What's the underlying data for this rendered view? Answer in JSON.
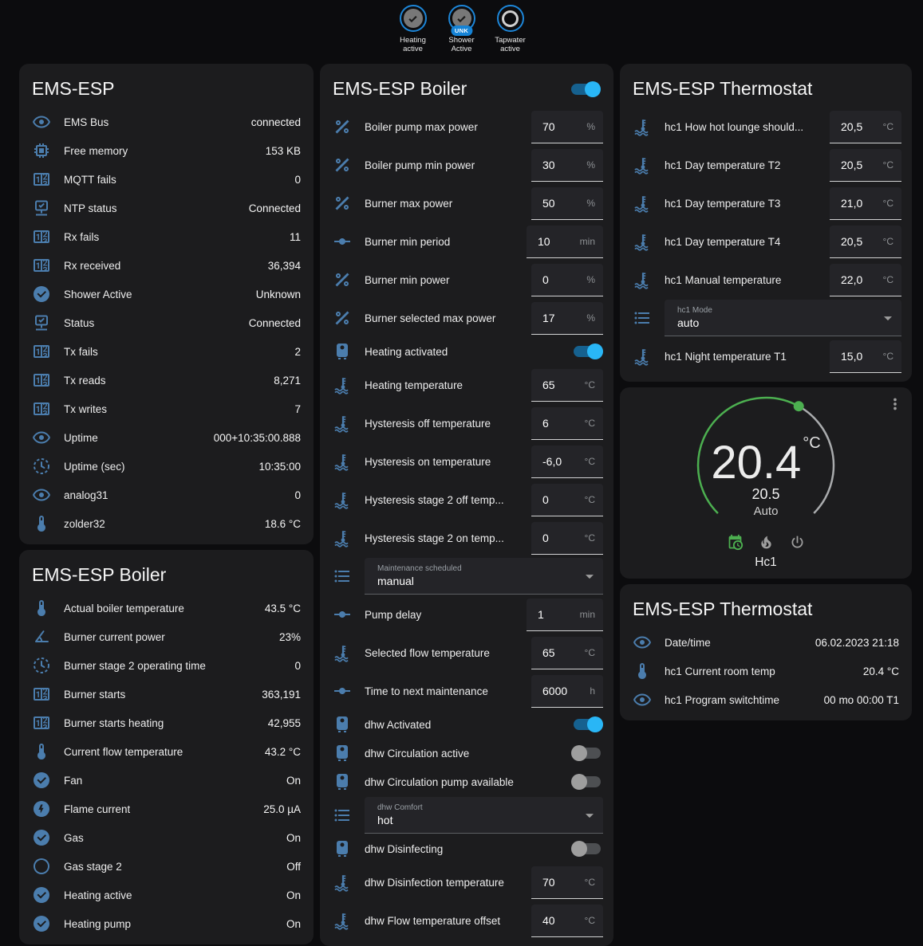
{
  "colors": {
    "accent": "#29b6f6",
    "icon_blue": "#4b7dad",
    "dial_green": "#4caf50",
    "badge_ring": "#1d86d8"
  },
  "top_badges": [
    {
      "icon": "check",
      "label": "Heating active",
      "state": "on",
      "sub": null
    },
    {
      "icon": "check",
      "label": "Shower Active",
      "state": "on",
      "sub": "UNK"
    },
    {
      "icon": "circle",
      "label": "Tapwater active",
      "state": "off",
      "sub": null
    }
  ],
  "left": {
    "card1": {
      "title": "EMS-ESP",
      "rows": [
        {
          "icon": "eye",
          "label": "EMS Bus",
          "value": "connected"
        },
        {
          "icon": "memory",
          "label": "Free memory",
          "value": "153 KB"
        },
        {
          "icon": "counter",
          "label": "MQTT fails",
          "value": "0"
        },
        {
          "icon": "network-check",
          "label": "NTP status",
          "value": "Connected"
        },
        {
          "icon": "counter",
          "label": "Rx fails",
          "value": "11"
        },
        {
          "icon": "counter",
          "label": "Rx received",
          "value": "36,394"
        },
        {
          "icon": "check-circle",
          "label": "Shower Active",
          "value": "Unknown"
        },
        {
          "icon": "network-check",
          "label": "Status",
          "value": "Connected"
        },
        {
          "icon": "counter",
          "label": "Tx fails",
          "value": "2"
        },
        {
          "icon": "counter",
          "label": "Tx reads",
          "value": "8,271"
        },
        {
          "icon": "counter",
          "label": "Tx writes",
          "value": "7"
        },
        {
          "icon": "eye",
          "label": "Uptime",
          "value": "000+10:35:00.888"
        },
        {
          "icon": "clock",
          "label": "Uptime (sec)",
          "value": "10:35:00"
        },
        {
          "icon": "eye",
          "label": "analog31",
          "value": "0"
        },
        {
          "icon": "thermometer",
          "label": "zolder32",
          "value": "18.6 °C"
        }
      ]
    },
    "card2": {
      "title": "EMS-ESP Boiler",
      "rows": [
        {
          "icon": "thermometer",
          "label": "Actual boiler temperature",
          "value": "43.5 °C"
        },
        {
          "icon": "angle",
          "label": "Burner current power",
          "value": "23%"
        },
        {
          "icon": "clock",
          "label": "Burner stage 2 operating time",
          "value": "0"
        },
        {
          "icon": "counter",
          "label": "Burner starts",
          "value": "363,191"
        },
        {
          "icon": "counter",
          "label": "Burner starts heating",
          "value": "42,955"
        },
        {
          "icon": "thermometer",
          "label": "Current flow temperature",
          "value": "43.2 °C"
        },
        {
          "icon": "check-circle",
          "label": "Fan",
          "value": "On"
        },
        {
          "icon": "flash-circle",
          "label": "Flame current",
          "value": "25.0 µA"
        },
        {
          "icon": "check-circle",
          "label": "Gas",
          "value": "On"
        },
        {
          "icon": "circle-outline",
          "label": "Gas stage 2",
          "value": "Off"
        },
        {
          "icon": "check-circle",
          "label": "Heating active",
          "value": "On"
        },
        {
          "icon": "check-circle",
          "label": "Heating pump",
          "value": "On"
        }
      ]
    }
  },
  "middle": {
    "title": "EMS-ESP Boiler",
    "header_toggle_on": true,
    "rows": [
      {
        "icon": "percent",
        "label": "Boiler pump max power",
        "control": "number",
        "value": "70",
        "unit": "%"
      },
      {
        "icon": "percent",
        "label": "Boiler pump min power",
        "control": "number",
        "value": "30",
        "unit": "%"
      },
      {
        "icon": "percent",
        "label": "Burner max power",
        "control": "number",
        "value": "50",
        "unit": "%"
      },
      {
        "icon": "ray",
        "label": "Burner min period",
        "control": "number",
        "value": "10",
        "unit": "min"
      },
      {
        "icon": "percent",
        "label": "Burner min power",
        "control": "number",
        "value": "0",
        "unit": "%"
      },
      {
        "icon": "percent",
        "label": "Burner selected max power",
        "control": "number",
        "value": "17",
        "unit": "%"
      },
      {
        "icon": "water-boiler",
        "label": "Heating activated",
        "control": "toggle",
        "on": true
      },
      {
        "icon": "thermo-water",
        "label": "Heating temperature",
        "control": "number",
        "value": "65",
        "unit": "°C"
      },
      {
        "icon": "thermo-water",
        "label": "Hysteresis off temperature",
        "control": "number",
        "value": "6",
        "unit": "°C"
      },
      {
        "icon": "thermo-water",
        "label": "Hysteresis on temperature",
        "control": "number",
        "value": "-6,0",
        "unit": "°C"
      },
      {
        "icon": "thermo-water",
        "label": "Hysteresis stage 2 off temp...",
        "control": "number",
        "value": "0",
        "unit": "°C"
      },
      {
        "icon": "thermo-water",
        "label": "Hysteresis stage 2 on temp...",
        "control": "number",
        "value": "0",
        "unit": "°C"
      },
      {
        "icon": "list",
        "label": "Maintenance scheduled",
        "control": "select",
        "value": "manual"
      },
      {
        "icon": "ray",
        "label": "Pump delay",
        "control": "number",
        "value": "1",
        "unit": "min"
      },
      {
        "icon": "thermo-water",
        "label": "Selected flow temperature",
        "control": "number",
        "value": "65",
        "unit": "°C"
      },
      {
        "icon": "ray",
        "label": "Time to next maintenance",
        "control": "number",
        "value": "6000",
        "unit": "h"
      },
      {
        "icon": "water-boiler",
        "label": "dhw Activated",
        "control": "toggle",
        "on": true
      },
      {
        "icon": "water-boiler",
        "label": "dhw Circulation active",
        "control": "toggle",
        "on": false
      },
      {
        "icon": "water-boiler",
        "label": "dhw Circulation pump available",
        "control": "toggle",
        "on": false
      },
      {
        "icon": "list",
        "label": "dhw Comfort",
        "control": "select",
        "value": "hot"
      },
      {
        "icon": "water-boiler",
        "label": "dhw Disinfecting",
        "control": "toggle",
        "on": false
      },
      {
        "icon": "thermo-water",
        "label": "dhw Disinfection temperature",
        "control": "number",
        "value": "70",
        "unit": "°C"
      },
      {
        "icon": "thermo-water",
        "label": "dhw Flow temperature offset",
        "control": "number",
        "value": "40",
        "unit": "°C"
      }
    ]
  },
  "right": {
    "card1": {
      "title": "EMS-ESP Thermostat",
      "rows": [
        {
          "icon": "thermo-water",
          "label": "hc1 How hot lounge should...",
          "control": "number",
          "value": "20,5",
          "unit": "°C"
        },
        {
          "icon": "thermo-water",
          "label": "hc1 Day temperature T2",
          "control": "number",
          "value": "20,5",
          "unit": "°C"
        },
        {
          "icon": "thermo-water",
          "label": "hc1 Day temperature T3",
          "control": "number",
          "value": "21,0",
          "unit": "°C"
        },
        {
          "icon": "thermo-water",
          "label": "hc1 Day temperature T4",
          "control": "number",
          "value": "20,5",
          "unit": "°C"
        },
        {
          "icon": "thermo-water",
          "label": "hc1 Manual temperature",
          "control": "number",
          "value": "22,0",
          "unit": "°C"
        },
        {
          "icon": "list",
          "label": "hc1 Mode",
          "control": "select",
          "value": "auto"
        },
        {
          "icon": "thermo-water",
          "label": "hc1 Night temperature T1",
          "control": "number",
          "value": "15,0",
          "unit": "°C"
        }
      ]
    },
    "dial": {
      "current": "20.4",
      "unit": "°C",
      "target": "20.5",
      "mode": "Auto",
      "zone": "Hc1",
      "mode_icons": [
        "calendar-clock",
        "fire",
        "power"
      ]
    },
    "card3": {
      "title": "EMS-ESP Thermostat",
      "rows": [
        {
          "icon": "eye",
          "label": "Date/time",
          "value": "06.02.2023 21:18"
        },
        {
          "icon": "thermometer",
          "label": "hc1 Current room temp",
          "value": "20.4 °C"
        },
        {
          "icon": "eye",
          "label": "hc1 Program switchtime",
          "value": "00 mo 00:00 T1"
        }
      ]
    }
  }
}
